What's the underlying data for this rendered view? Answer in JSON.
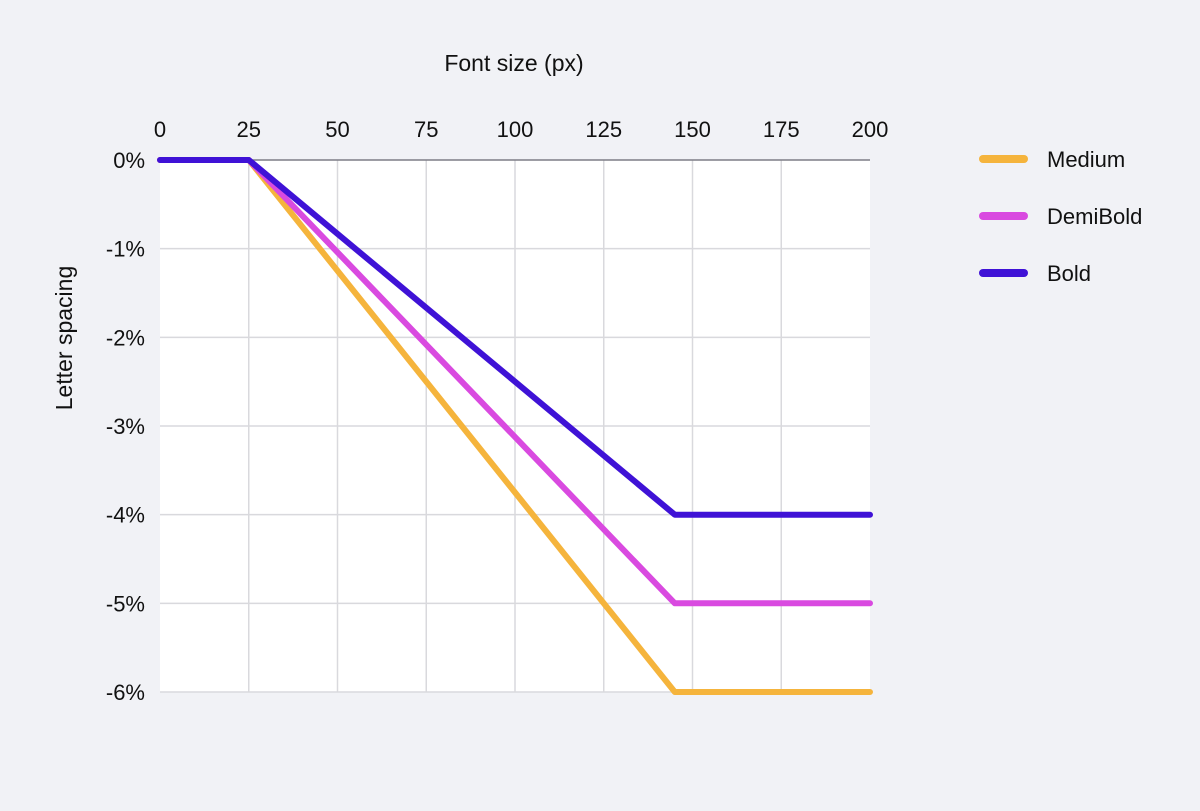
{
  "chart_data": {
    "type": "line",
    "title": "",
    "xlabel": "Font size (px)",
    "ylabel": "Letter spacing",
    "x_ticks": [
      0,
      25,
      50,
      75,
      100,
      125,
      150,
      175,
      200
    ],
    "y_ticks": [
      0,
      -1,
      -2,
      -3,
      -4,
      -5,
      -6
    ],
    "y_tick_labels": [
      "0%",
      "-1%",
      "-2%",
      "-3%",
      "-4%",
      "-5%",
      "-6%"
    ],
    "xlim": [
      0,
      200
    ],
    "ylim": [
      -6,
      0
    ],
    "x_axis_position": "top",
    "grid": true,
    "legend_position": "right",
    "series": [
      {
        "name": "Medium",
        "color": "#f5b43c",
        "x": [
          0,
          25,
          145,
          200
        ],
        "y": [
          0,
          0,
          -6,
          -6
        ]
      },
      {
        "name": "DemiBold",
        "color": "#d94ae0",
        "x": [
          0,
          25,
          145,
          200
        ],
        "y": [
          0,
          0,
          -5,
          -5
        ]
      },
      {
        "name": "Bold",
        "color": "#3f12d6",
        "x": [
          0,
          25,
          145,
          200
        ],
        "y": [
          0,
          0,
          -4,
          -4
        ]
      }
    ]
  }
}
